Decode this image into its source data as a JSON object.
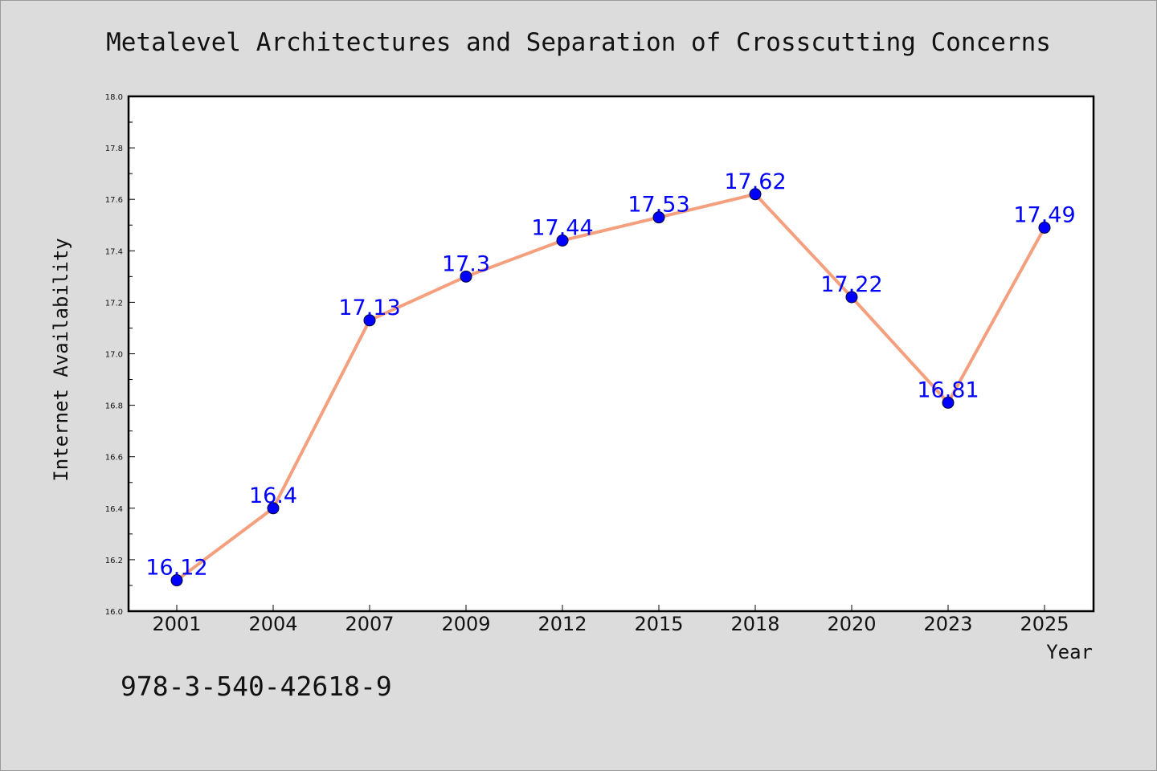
{
  "colors": {
    "background": "#dcdcdc",
    "plot_background": "#ffffff",
    "line": "#f4a07e",
    "marker": "#0000ff",
    "data_label": "#0000ff"
  },
  "footnote": "978-3-540-42618-9",
  "chart_data": {
    "type": "line",
    "title": "Metalevel Architectures and Separation of Crosscutting Concerns",
    "xlabel": "Year",
    "ylabel": "Internet Availability",
    "categories": [
      "2001",
      "2004",
      "2007",
      "2009",
      "2012",
      "2015",
      "2018",
      "2020",
      "2023",
      "2025"
    ],
    "series": [
      {
        "values": [
          16.12,
          16.4,
          17.13,
          17.3,
          17.44,
          17.53,
          17.62,
          17.22,
          16.81,
          17.49
        ],
        "data_labels": [
          "16.12",
          "16.4",
          "17.13",
          "17.3",
          "17.44",
          "17.53",
          "17.62",
          "17.22",
          "16.81",
          "17.49"
        ]
      }
    ],
    "ylim": [
      16.0,
      18.0
    ],
    "yticks": [
      "16.0",
      "16.2",
      "16.4",
      "16.6",
      "16.8",
      "17.0",
      "17.2",
      "17.4",
      "17.6",
      "17.8",
      "18.0"
    ],
    "grid": false,
    "legend": "none"
  }
}
